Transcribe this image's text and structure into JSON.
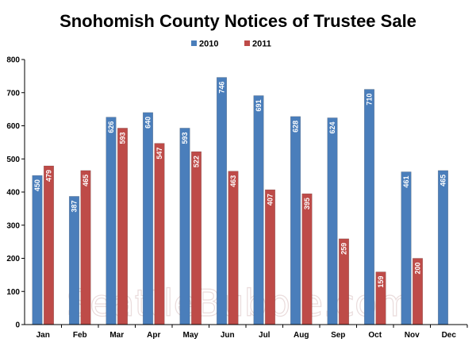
{
  "chart_data": {
    "type": "bar",
    "title": "Snohomish County Notices of Trustee Sale",
    "categories": [
      "Jan",
      "Feb",
      "Mar",
      "Apr",
      "May",
      "Jun",
      "Jul",
      "Aug",
      "Sep",
      "Oct",
      "Nov",
      "Dec"
    ],
    "series": [
      {
        "name": "2010",
        "color": "#4a7ebb",
        "values": [
          450,
          387,
          626,
          640,
          593,
          746,
          691,
          628,
          624,
          710,
          461,
          465
        ]
      },
      {
        "name": "2011",
        "color": "#be4b48",
        "values": [
          479,
          465,
          593,
          547,
          522,
          463,
          407,
          395,
          259,
          159,
          200,
          null
        ]
      }
    ],
    "ylim": [
      0,
      800
    ],
    "yticks": [
      0,
      100,
      200,
      300,
      400,
      500,
      600,
      700,
      800
    ],
    "xlabel": "",
    "ylabel": "",
    "grid": false,
    "legend_position": "top",
    "data_labels": true,
    "watermark": "SeattleBubble.com"
  }
}
